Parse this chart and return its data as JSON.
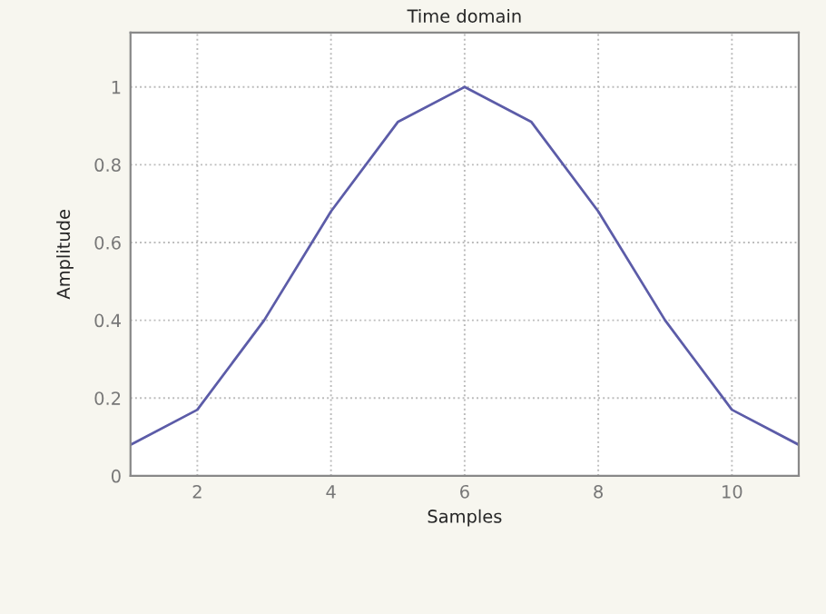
{
  "chart_data": {
    "type": "line",
    "title": "Time domain",
    "xlabel": "Samples",
    "ylabel": "Amplitude",
    "x": [
      1,
      2,
      3,
      4,
      5,
      6,
      7,
      8,
      9,
      10,
      11
    ],
    "series": [
      {
        "color": "#5c5ca8",
        "values": [
          0.08,
          0.17,
          0.4,
          0.68,
          0.91,
          1.0,
          0.91,
          0.68,
          0.4,
          0.17,
          0.08
        ]
      }
    ],
    "xlim": [
      1,
      11
    ],
    "ylim": [
      0,
      1.14
    ],
    "xticks": [
      2,
      4,
      6,
      8,
      10
    ],
    "yticks": [
      0,
      0.2,
      0.4,
      0.6,
      0.8,
      1
    ],
    "grid": true,
    "line_style": "solid",
    "marker": "none"
  }
}
